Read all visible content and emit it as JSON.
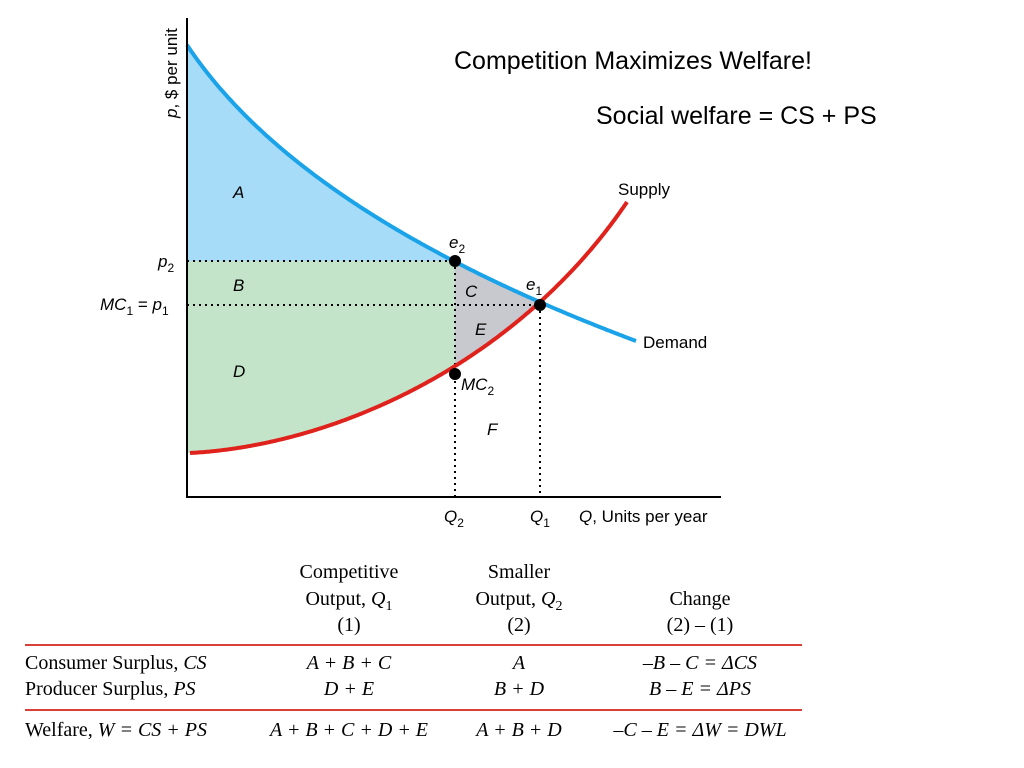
{
  "slide": {
    "title": "Competition Maximizes Welfare!",
    "subtitle": "Social welfare = CS + PS"
  },
  "chart_data": {
    "type": "line",
    "axes": {
      "y_label_italic": "p",
      "y_label_rest": ", $ per unit",
      "x_label_italic": "Q",
      "x_label_rest": ", Units per year",
      "x_ticks": [
        {
          "italic": "Q",
          "sub": "2"
        },
        {
          "italic": "Q",
          "sub": "1"
        }
      ],
      "y_ticks": [
        {
          "italic": "p",
          "sub": "2"
        },
        {
          "prefix_italic": "MC",
          "prefix_sub": "1",
          "mid": " = ",
          "italic": "p",
          "sub": "1"
        }
      ]
    },
    "series": [
      {
        "name": "Supply",
        "color": "#e0221c"
      },
      {
        "name": "Demand",
        "color": "#1aa3e8"
      }
    ],
    "points": [
      {
        "italic": "e",
        "sub": "2"
      },
      {
        "italic": "e",
        "sub": "1"
      },
      {
        "italic": "MC",
        "sub": "2"
      }
    ],
    "regions": [
      {
        "label": "A",
        "color": "#a6dcf8"
      },
      {
        "label": "B",
        "color": "#c3e4c9"
      },
      {
        "label": "C",
        "color": "#c8c9ce"
      },
      {
        "label": "D",
        "color": "#c3e4c9"
      },
      {
        "label": "E",
        "color": "#c8c9ce"
      },
      {
        "label": "F",
        "color": "#ffffff"
      }
    ]
  },
  "table": {
    "headers": [
      {
        "line1": "Competitive",
        "line2_text": "Output, ",
        "line2_italic": "Q",
        "line2_sub": "1",
        "line3": "(1)"
      },
      {
        "line1": "Smaller",
        "line2_text": "Output, ",
        "line2_italic": "Q",
        "line2_sub": "2",
        "line3": "(2)"
      },
      {
        "line1": "Change",
        "line3": "(2) – (1)"
      }
    ],
    "rows": [
      {
        "label": "Consumer Surplus, ",
        "label_italic": "CS",
        "competitive": "A + B + C",
        "smaller": "A",
        "change": "–B – C = ΔCS"
      },
      {
        "label": "Producer Surplus, ",
        "label_italic": "PS",
        "competitive": "D + E",
        "smaller": "B + D",
        "change": "B – E = ΔPS"
      },
      {
        "label": "Welfare, ",
        "label_italic": "W = CS + PS",
        "competitive": "A + B + C + D + E",
        "smaller": "A + B + D",
        "change": "–C – E = ΔW = DWL"
      }
    ]
  }
}
